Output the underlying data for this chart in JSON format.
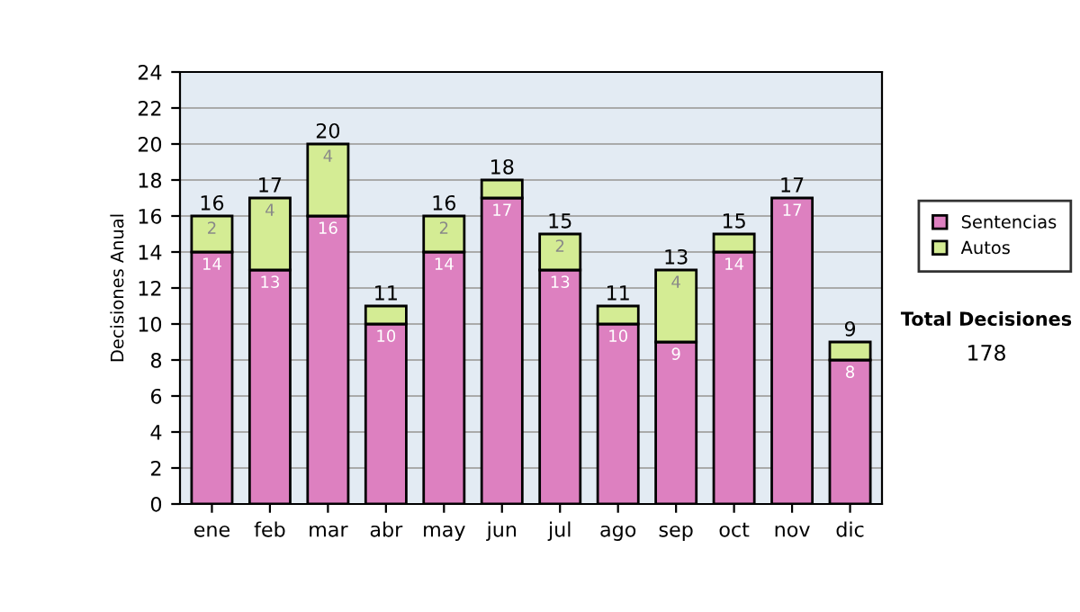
{
  "chart_data": {
    "type": "bar",
    "stacked": true,
    "ylabel": "Decisiones Anual",
    "categories": [
      "ene",
      "feb",
      "mar",
      "abr",
      "may",
      "jun",
      "jul",
      "ago",
      "sep",
      "oct",
      "nov",
      "dic"
    ],
    "series": [
      {
        "name": "Sentencias",
        "color": "#dd80c0",
        "values": [
          14,
          13,
          16,
          10,
          14,
          17,
          13,
          10,
          9,
          14,
          17,
          8
        ],
        "value_labels": [
          "14",
          "13",
          "16",
          "10",
          "14",
          "17",
          "13",
          "10",
          "9",
          "14",
          "17",
          "8"
        ]
      },
      {
        "name": "Autos",
        "color": "#d4ec94",
        "values": [
          2,
          4,
          4,
          1,
          2,
          1,
          2,
          1,
          4,
          1,
          null,
          1
        ],
        "value_labels": [
          "2",
          "4",
          "4",
          null,
          "2",
          null,
          "2",
          null,
          "4",
          null,
          null,
          null
        ]
      }
    ],
    "totals": [
      "16",
      "17",
      "20",
      "11",
      "16",
      "18",
      "15",
      "11",
      "13",
      "15",
      "17",
      "9"
    ],
    "ylim": [
      0,
      24
    ],
    "yticks": [
      0,
      2,
      4,
      6,
      8,
      10,
      12,
      14,
      16,
      18,
      20,
      22,
      24
    ],
    "grid": "y",
    "legend": "right",
    "annotations": [
      "Total Decisiones",
      "178"
    ]
  }
}
